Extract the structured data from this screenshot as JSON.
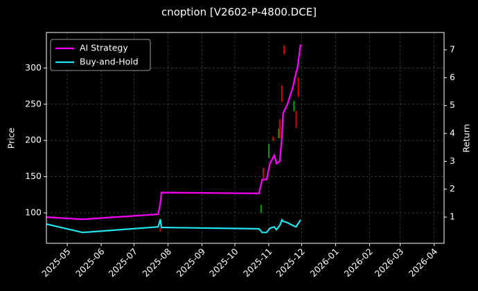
{
  "chart_data": {
    "type": "candlestick",
    "title": "cnoption [V2602-P-4800.DCE]",
    "ylabel": "Price",
    "y2label": "Return",
    "xlim": [
      "2025-04-12",
      "2026-04-10"
    ],
    "ylim": [
      58,
      349
    ],
    "yticks": [
      100,
      150,
      200,
      250,
      300
    ],
    "y2lim": [
      0.06,
      7.62
    ],
    "y2ticks": [
      1,
      2,
      3,
      4,
      5,
      6,
      7
    ],
    "xticks": [
      {
        "value": "2025-05-01",
        "label": "2025-05"
      },
      {
        "value": "2025-06-01",
        "label": "2025-06"
      },
      {
        "value": "2025-07-01",
        "label": "2025-07"
      },
      {
        "value": "2025-08-01",
        "label": "2025-08"
      },
      {
        "value": "2025-09-01",
        "label": "2025-09"
      },
      {
        "value": "2025-10-01",
        "label": "2025-10"
      },
      {
        "value": "2025-11-01",
        "label": "2025-11"
      },
      {
        "value": "2025-12-01",
        "label": "2025-12"
      },
      {
        "value": "2026-01-01",
        "label": "2026-01"
      },
      {
        "value": "2026-02-01",
        "label": "2026-02"
      },
      {
        "value": "2026-03-01",
        "label": "2026-03"
      },
      {
        "value": "2026-04-01",
        "label": "2026-04"
      }
    ],
    "grid": true,
    "legend": "upper left",
    "candles": {
      "x": [
        "2025-07-25",
        "2025-10-25",
        "2025-10-27",
        "2025-11-01",
        "2025-11-05",
        "2025-11-10",
        "2025-11-11",
        "2025-11-13",
        "2025-11-15",
        "2025-11-24",
        "2025-11-26",
        "2025-11-28"
      ],
      "open": [
        79,
        100,
        162,
        176,
        205,
        203,
        229,
        276,
        331,
        240,
        241,
        287
      ],
      "close": [
        74,
        111,
        148,
        195,
        199,
        216,
        203,
        253,
        319,
        255,
        217,
        260
      ],
      "up_color": "#00a000",
      "down_color": "#e00000"
    },
    "x": [
      "2025-04-12",
      "2025-05-15",
      "2025-07-23",
      "2025-07-25",
      "2025-07-26",
      "2025-10-23",
      "2025-10-26",
      "2025-10-30",
      "2025-11-02",
      "2025-11-06",
      "2025-11-08",
      "2025-11-11",
      "2025-11-13",
      "2025-11-14",
      "2025-11-18",
      "2025-11-23",
      "2025-11-26",
      "2025-11-27",
      "2025-11-30"
    ],
    "series": [
      {
        "name": "AI Strategy",
        "color": "#ff00ff",
        "axis": "y2",
        "values": [
          1.0,
          0.92,
          1.1,
          1.5,
          1.88,
          1.85,
          2.35,
          2.35,
          2.92,
          3.22,
          2.92,
          3.0,
          3.88,
          4.72,
          5.05,
          5.67,
          6.2,
          6.3,
          7.19
        ]
      },
      {
        "name": "Buy-and-Hold",
        "color": "#22e5f0",
        "axis": "y2",
        "values": [
          0.75,
          0.45,
          0.65,
          0.92,
          0.63,
          0.58,
          0.45,
          0.45,
          0.6,
          0.65,
          0.55,
          0.7,
          0.9,
          0.85,
          0.8,
          0.7,
          0.65,
          0.72,
          0.9
        ]
      }
    ]
  }
}
